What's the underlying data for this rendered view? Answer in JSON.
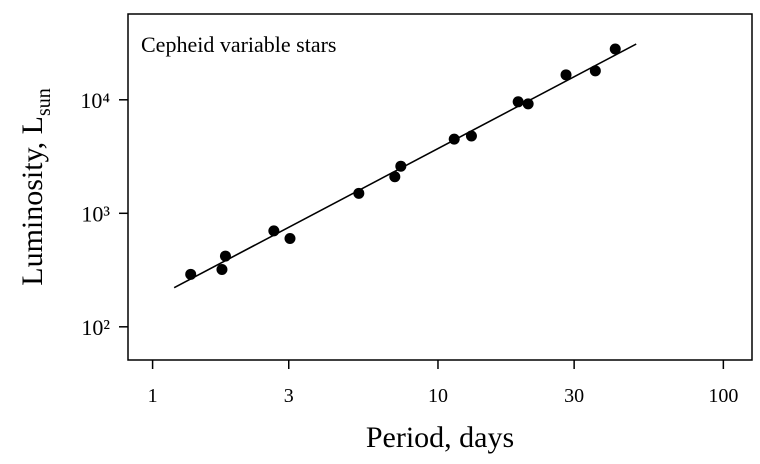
{
  "chart_data": {
    "type": "scatter",
    "annotation": "Cepheid variable stars",
    "xlabel": "Period, days",
    "ylabel": "Luminosity,  L",
    "ylabel_subscript": "sun",
    "xscale": "log",
    "yscale": "log",
    "xlim": [
      0.82,
      126
    ],
    "ylim": [
      51,
      57000
    ],
    "xticks": [
      1,
      3,
      10,
      30,
      100
    ],
    "yticks": [
      {
        "value": 100,
        "label": "10²"
      },
      {
        "value": 1000,
        "label": "10³"
      },
      {
        "value": 10000,
        "label": "10⁴"
      }
    ],
    "series": [
      {
        "type": "scatter",
        "color": "#000000",
        "x": [
          1.36,
          1.75,
          1.8,
          2.66,
          3.03,
          5.28,
          7.06,
          7.41,
          11.4,
          13.1,
          19.1,
          20.7,
          28.1,
          35.6,
          41.8
        ],
        "values": [
          290,
          320,
          420,
          700,
          600,
          1500,
          2100,
          2600,
          4500,
          4800,
          9600,
          9200,
          16600,
          18000,
          28000
        ]
      },
      {
        "type": "line",
        "color": "#000000",
        "x": [
          1.19,
          49.5
        ],
        "values": [
          221,
          31000
        ]
      }
    ]
  }
}
